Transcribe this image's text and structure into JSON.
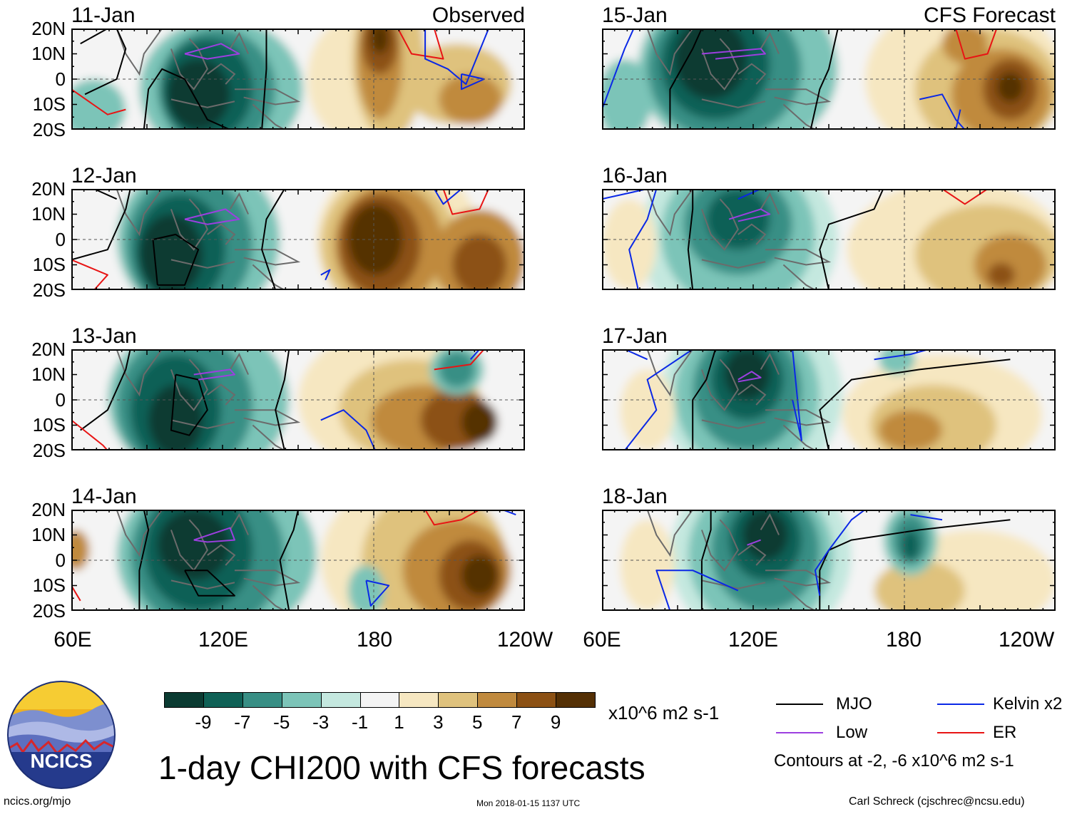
{
  "colors": {
    "scale": [
      "#0b3b32",
      "#0f6156",
      "#388f85",
      "#7cc4b8",
      "#c4e8df",
      "#f4f4f4",
      "#f6e7c1",
      "#dfc27d",
      "#c08a3e",
      "#8c5114",
      "#543005"
    ],
    "mjo": "#000000",
    "low": "#9c3fe0",
    "kelvin": "#0a28e6",
    "er": "#e81414",
    "coast": "#6b6b6b"
  },
  "panels": [
    {
      "id": "p1",
      "date": "11-Jan",
      "tag": "Observed"
    },
    {
      "id": "p2",
      "date": "12-Jan",
      "tag": ""
    },
    {
      "id": "p3",
      "date": "13-Jan",
      "tag": ""
    },
    {
      "id": "p4",
      "date": "14-Jan",
      "tag": ""
    },
    {
      "id": "p5",
      "date": "15-Jan",
      "tag": "CFS Forecast"
    },
    {
      "id": "p6",
      "date": "16-Jan",
      "tag": ""
    },
    {
      "id": "p7",
      "date": "17-Jan",
      "tag": ""
    },
    {
      "id": "p8",
      "date": "18-Jan",
      "tag": ""
    }
  ],
  "lat_labels": [
    "20N",
    "10N",
    "0",
    "10S",
    "20S"
  ],
  "lon_labels_left": [
    "60E",
    "120E",
    "180",
    "120W"
  ],
  "lon_labels_right": [
    "60E",
    "120E",
    "180",
    "120W"
  ],
  "colorbar": {
    "ticks": [
      "-9",
      "-7",
      "-5",
      "-3",
      "-1",
      "1",
      "3",
      "5",
      "7",
      "9"
    ],
    "units": "x10^6 m2 s-1"
  },
  "legend": {
    "mjo": "MJO",
    "kelvin": "Kelvin x2",
    "low": "Low",
    "er": "ER",
    "contours_note": "Contours at -2, -6 x10^6 m2 s-1"
  },
  "title": "1-day CHI200 with CFS forecasts",
  "logo_text": "NCICS",
  "footer": {
    "left": "ncics.org/mjo",
    "center": "Mon 2018-01-15 1137 UTC",
    "right": "Carl Schreck (cjschrec@ncsu.edu)"
  },
  "chart_data": {
    "type": "heatmap",
    "title": "1-day CHI200 with CFS forecasts",
    "units": "x10^6 m2 s-1",
    "x_range": [
      "60E",
      "120W"
    ],
    "y_range": [
      "20S",
      "20N"
    ],
    "field_description_per_panel": [
      {
        "date": "11-Jan",
        "source": "Observed",
        "min_center": {
          "lon": "105E",
          "value": -9
        },
        "max_center": {
          "lon": "180",
          "value": 9
        }
      },
      {
        "date": "12-Jan",
        "source": "Observed",
        "min_center": {
          "lon": "105E",
          "value": -9
        },
        "max_center": {
          "lon": "180",
          "value": 9
        }
      },
      {
        "date": "13-Jan",
        "source": "Observed",
        "min_center": {
          "lon": "105E",
          "value": -7
        },
        "max_center": {
          "lon": "140W",
          "value": 9
        }
      },
      {
        "date": "14-Jan",
        "source": "Observed",
        "min_center": {
          "lon": "110E",
          "value": -9
        },
        "max_center": {
          "lon": "140W",
          "value": 9
        }
      },
      {
        "date": "15-Jan",
        "source": "CFS Forecast",
        "min_center": {
          "lon": "115E",
          "value": -9
        },
        "max_center": {
          "lon": "140W",
          "value": 9
        }
      },
      {
        "date": "16-Jan",
        "source": "CFS Forecast",
        "min_center": {
          "lon": "120E",
          "value": -7
        },
        "max_center": {
          "lon": "140W",
          "value": 7
        }
      },
      {
        "date": "17-Jan",
        "source": "CFS Forecast",
        "min_center": {
          "lon": "125E",
          "value": -9
        },
        "max_center": {
          "lon": "170E",
          "value": 5
        }
      },
      {
        "date": "18-Jan",
        "source": "CFS Forecast",
        "min_center": {
          "lon": "125E",
          "value": -9
        },
        "max_center": {
          "lon": "160W",
          "value": 3
        }
      }
    ],
    "contour_levels": [
      -2,
      -6
    ],
    "legend": [
      "MJO",
      "Low",
      "Kelvin x2",
      "ER"
    ]
  }
}
